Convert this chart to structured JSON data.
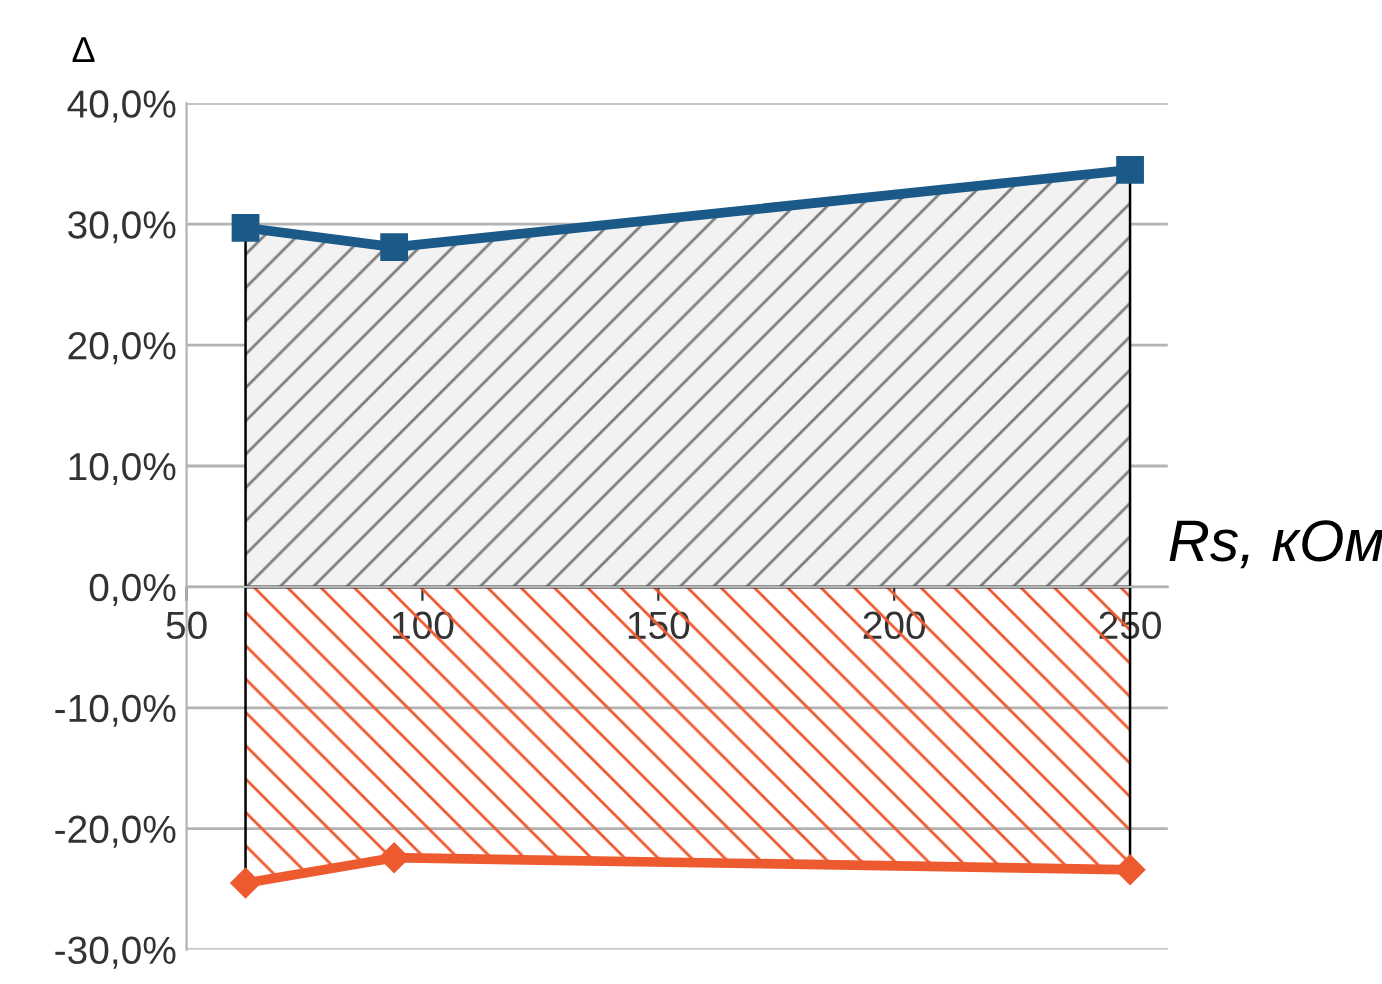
{
  "chart_data": {
    "type": "area",
    "ylabel": "Δ",
    "xlabel": "Rs, кОм",
    "x": [
      62.5,
      94,
      250
    ],
    "series": [
      {
        "color": "#1b5a88",
        "values": [
          29.7,
          28.1,
          34.5
        ],
        "marker": "square"
      },
      {
        "color": "#ee5a2f",
        "values": [
          -24.5,
          -22.4,
          -23.4
        ],
        "marker": "diamond"
      }
    ],
    "xlim": [
      50,
      258
    ],
    "xticks": [
      50,
      100,
      150,
      200,
      250
    ],
    "ylim": [
      -30,
      40
    ],
    "yticks": [
      {
        "value": -30,
        "label": "-30,0%"
      },
      {
        "value": -20,
        "label": "-20,0%"
      },
      {
        "value": -10,
        "label": "-10,0%"
      },
      {
        "value": 0,
        "label": "0,0%"
      },
      {
        "value": 10,
        "label": "10,0%"
      },
      {
        "value": 20,
        "label": "20,0%"
      },
      {
        "value": 30,
        "label": "30,0%"
      },
      {
        "value": 40,
        "label": "40,0%"
      }
    ],
    "grid": "y"
  }
}
